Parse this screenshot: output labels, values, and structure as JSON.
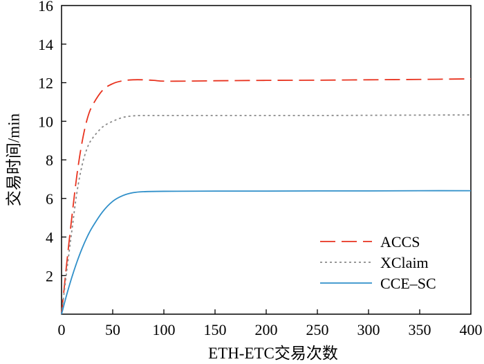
{
  "chart_data": {
    "type": "line",
    "xlabel": "ETH-ETC交易次数",
    "ylabel": "交易时间/min",
    "xlim": [
      0,
      400
    ],
    "ylim": [
      0,
      16
    ],
    "xticks": [
      0,
      50,
      100,
      150,
      200,
      250,
      300,
      350,
      400
    ],
    "yticks": [
      2,
      4,
      6,
      8,
      10,
      12,
      14,
      16
    ],
    "grid": false,
    "legend_position": "bottom-right",
    "series": [
      {
        "name": "ACCS",
        "color": "#e8321e",
        "dash": "long-dash",
        "x": [
          0,
          5,
          10,
          15,
          20,
          25,
          30,
          40,
          50,
          60,
          70,
          80,
          90,
          100,
          120,
          150,
          200,
          250,
          300,
          350,
          400
        ],
        "y": [
          0,
          2.6,
          5.0,
          7.2,
          8.9,
          10.1,
          10.8,
          11.6,
          11.95,
          12.1,
          12.15,
          12.15,
          12.12,
          12.08,
          12.08,
          12.1,
          12.12,
          12.13,
          12.15,
          12.17,
          12.2
        ]
      },
      {
        "name": "XClaim",
        "color": "#8a8a8a",
        "dash": "dotted",
        "x": [
          0,
          5,
          10,
          15,
          20,
          25,
          30,
          40,
          50,
          60,
          70,
          80,
          100,
          150,
          200,
          250,
          300,
          350,
          400
        ],
        "y": [
          0,
          2.2,
          4.3,
          6.3,
          7.7,
          8.6,
          9.1,
          9.7,
          10.0,
          10.2,
          10.28,
          10.3,
          10.3,
          10.3,
          10.3,
          10.3,
          10.31,
          10.32,
          10.33
        ]
      },
      {
        "name": "CCE–SC",
        "color": "#2f8fc9",
        "dash": "solid",
        "x": [
          0,
          5,
          10,
          15,
          20,
          25,
          30,
          40,
          50,
          60,
          70,
          80,
          100,
          150,
          200,
          250,
          300,
          350,
          400
        ],
        "y": [
          0,
          1.0,
          1.9,
          2.7,
          3.4,
          4.0,
          4.5,
          5.3,
          5.85,
          6.15,
          6.3,
          6.35,
          6.37,
          6.38,
          6.38,
          6.39,
          6.39,
          6.4,
          6.4
        ]
      }
    ]
  }
}
